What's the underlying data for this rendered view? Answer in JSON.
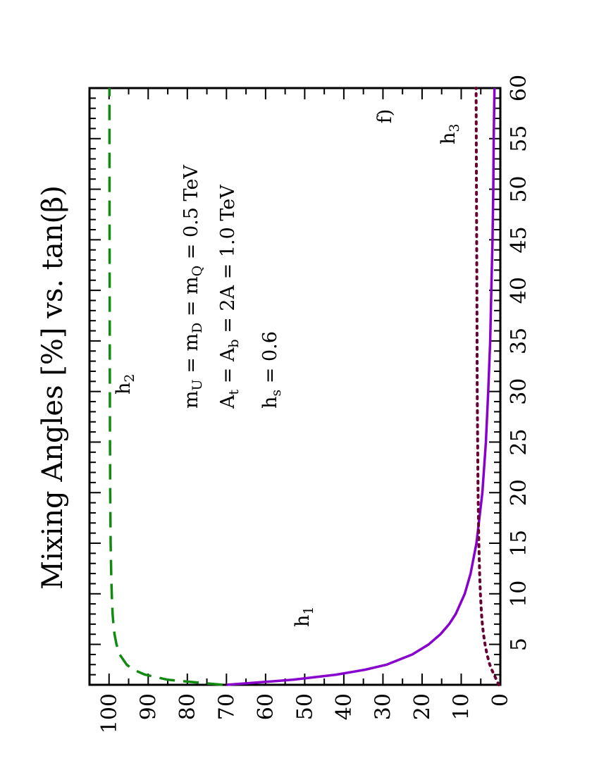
{
  "chart_data": {
    "type": "line",
    "title": "Mixing Angles [%] vs. tan(β)",
    "xlabel": "",
    "ylabel": "",
    "xlim": [
      1,
      60
    ],
    "ylim": [
      0,
      105
    ],
    "x_ticks": [
      5,
      10,
      15,
      20,
      25,
      30,
      35,
      40,
      45,
      50,
      55,
      60
    ],
    "y_ticks": [
      0,
      10,
      20,
      30,
      40,
      50,
      60,
      70,
      80,
      90,
      100
    ],
    "orientation": "rotated-90-ccw",
    "grid": false,
    "panel_label": "f)",
    "annotations": {
      "line1": {
        "parts": [
          "m",
          "U",
          " = m",
          "D",
          " = m",
          "Q",
          " = 0.5 TeV"
        ]
      },
      "line2": {
        "parts": [
          "A",
          "t",
          " = A",
          "b",
          " = 2A = 1.0 TeV"
        ]
      },
      "line3": {
        "parts": [
          "h",
          "s",
          " = 0.6"
        ]
      }
    },
    "series": [
      {
        "name": "h1",
        "label_main": "h",
        "label_sub": "1",
        "color": "#8800cc",
        "style": "solid",
        "x": [
          1,
          1.5,
          2,
          2.5,
          3,
          4,
          5,
          6,
          7,
          8,
          10,
          12,
          15,
          20,
          25,
          30,
          35,
          40,
          45,
          50,
          55,
          60
        ],
        "values": [
          70,
          53,
          42,
          34.5,
          29,
          22.5,
          18.3,
          15.3,
          13.1,
          11.4,
          9.1,
          7.6,
          6.1,
          4.6,
          3.7,
          3.1,
          2.6,
          2.3,
          2.0,
          1.8,
          1.7,
          1.5
        ]
      },
      {
        "name": "h2",
        "label_main": "h",
        "label_sub": "2",
        "color": "#128a12",
        "style": "dashed",
        "x": [
          1,
          1.5,
          2,
          2.5,
          3,
          4,
          5,
          6,
          7,
          8,
          10,
          12,
          15,
          20,
          25,
          30,
          40,
          50,
          60
        ],
        "values": [
          71,
          85,
          90.8,
          93.8,
          95.5,
          97.3,
          98.1,
          98.6,
          98.9,
          99.1,
          99.3,
          99.45,
          99.6,
          99.7,
          99.75,
          99.8,
          99.85,
          99.88,
          99.9
        ]
      },
      {
        "name": "h3",
        "label_main": "h",
        "label_sub": "3",
        "color": "#660033",
        "style": "dotted",
        "x": [
          1,
          1.5,
          2,
          2.5,
          3,
          4,
          5,
          6,
          7,
          8,
          10,
          12,
          15,
          20,
          25,
          30,
          40,
          50,
          60
        ],
        "values": [
          0.4,
          1.0,
          1.6,
          2.2,
          2.7,
          3.4,
          3.9,
          4.3,
          4.6,
          4.8,
          5.1,
          5.3,
          5.5,
          5.7,
          5.8,
          5.9,
          6.0,
          6.1,
          6.2
        ]
      }
    ]
  }
}
